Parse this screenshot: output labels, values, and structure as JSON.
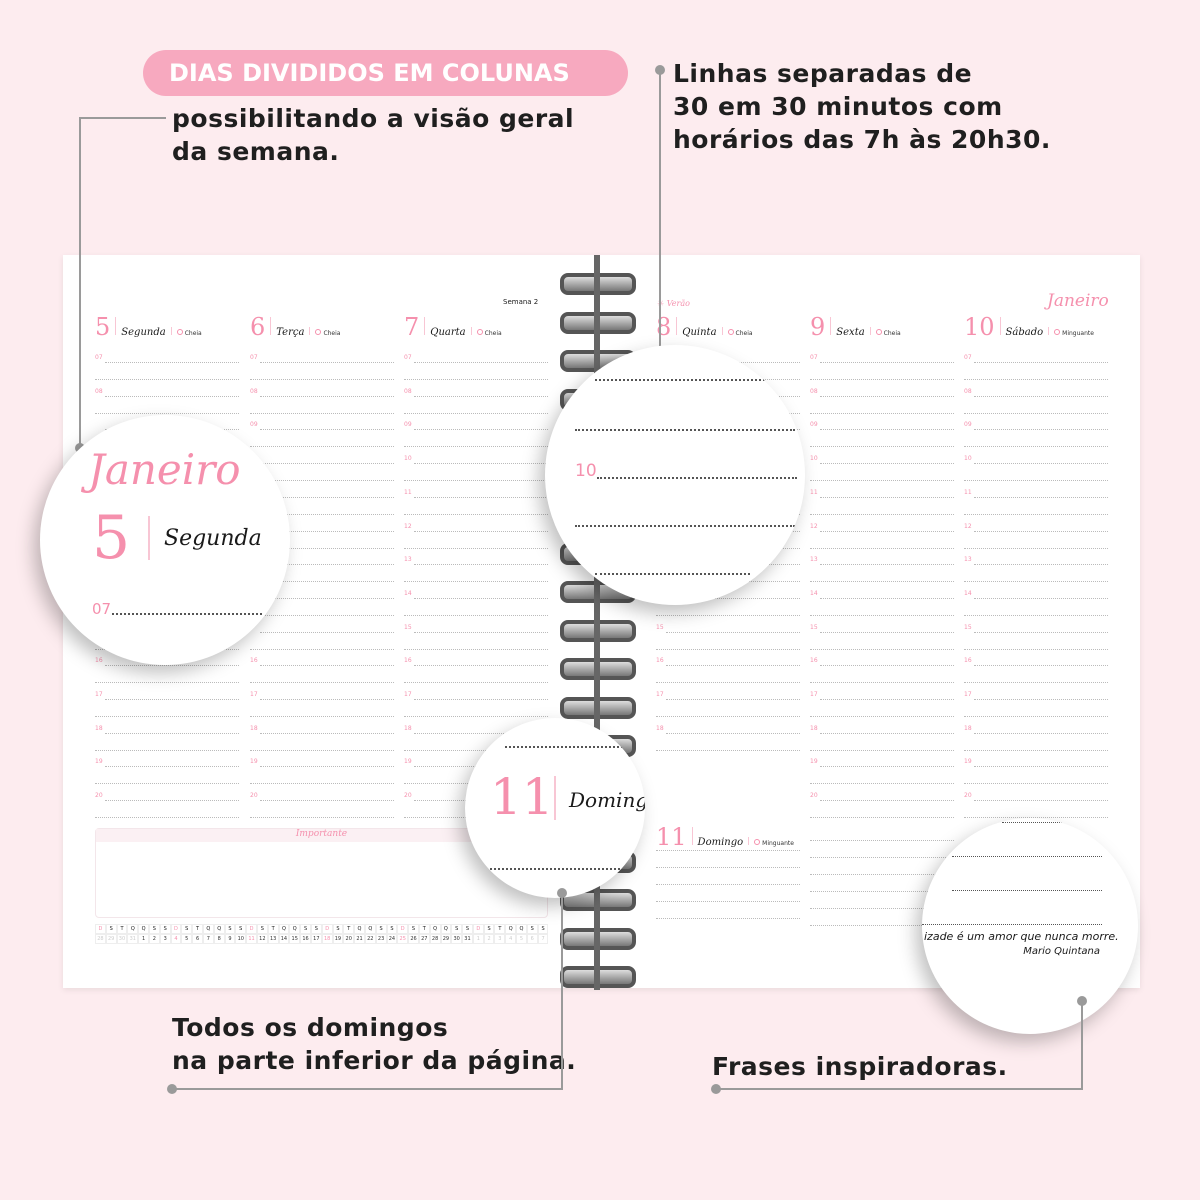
{
  "callouts": {
    "pill": "DIAS DIVIDIDOS EM COLUNAS",
    "pill_text": [
      "possibilitando a visão geral",
      "da semana."
    ],
    "lines_text": [
      "Linhas separadas de",
      "30 em 30 minutos com",
      "horários das 7h às 20h30."
    ],
    "sunday_text": [
      "Todos os domingos",
      "na parte inferior da página."
    ],
    "quotes_text": "Frases inspiradoras."
  },
  "planner": {
    "week": "Semana 2",
    "season": "Verão",
    "month": "Janeiro",
    "hours": [
      "07",
      "08",
      "09",
      "10",
      "11",
      "12",
      "13",
      "14",
      "15",
      "16",
      "17",
      "18",
      "19",
      "20"
    ],
    "left_days": [
      {
        "num": "5",
        "name": "Segunda",
        "moon": "Cheia"
      },
      {
        "num": "6",
        "name": "Terça",
        "moon": "Cheia"
      },
      {
        "num": "7",
        "name": "Quarta",
        "moon": "Cheia"
      }
    ],
    "right_days": [
      {
        "num": "8",
        "name": "Quinta",
        "moon": "Cheia"
      },
      {
        "num": "9",
        "name": "Sexta",
        "moon": "Cheia"
      },
      {
        "num": "10",
        "name": "Sábado",
        "moon": "Minguante"
      }
    ],
    "sunday": {
      "num": "11",
      "name": "Domingo",
      "moon": "Minguante"
    },
    "important": "Importante",
    "quote": "izade é um amor que nunca morre.",
    "author": "Mario Quintana",
    "calendar_weekdays": [
      "D",
      "S",
      "T",
      "Q",
      "Q",
      "S",
      "S"
    ],
    "calendar_days": [
      "28",
      "29",
      "30",
      "31",
      "1",
      "2",
      "3",
      "4",
      "5",
      "6",
      "7",
      "8",
      "9",
      "10",
      "11",
      "12",
      "13",
      "14",
      "15",
      "16",
      "17",
      "18",
      "19",
      "20",
      "21",
      "22",
      "23",
      "24",
      "25",
      "26",
      "27",
      "28",
      "29",
      "30",
      "31",
      "1",
      "2",
      "3",
      "4",
      "5",
      "6",
      "7"
    ]
  },
  "zoom": {
    "month": "Janeiro",
    "day_num": "5",
    "day_name": "Segunda",
    "hour": "07",
    "hour2": "10",
    "sun_num": "11",
    "sun_name": "Domingo"
  },
  "colors": {
    "accent": "#f590ad",
    "pill": "#f7a9bf",
    "background": "#fdecef"
  }
}
